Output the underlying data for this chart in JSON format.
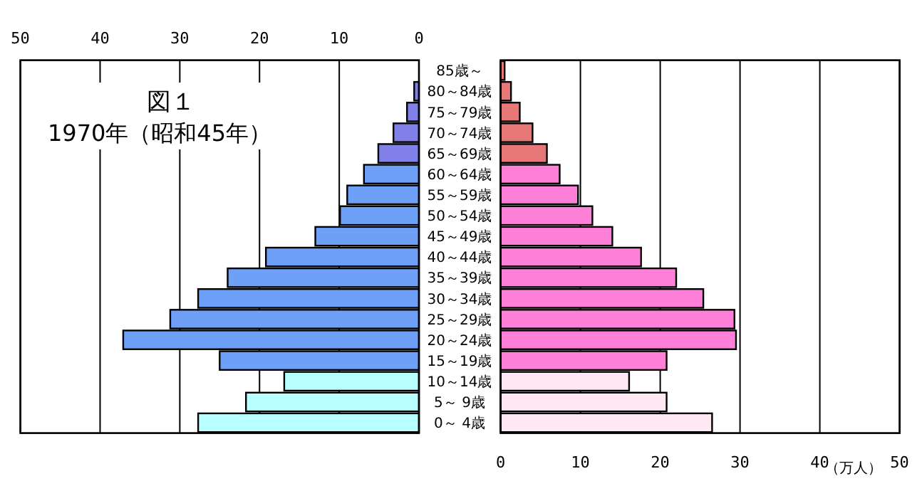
{
  "chart_data": [
    {
      "type": "bar",
      "orientation": "horizontal",
      "title": "図１",
      "subtitle": "1970年（昭和45年）",
      "categories": [
        "85歳～",
        "80～84歳",
        "75～79歳",
        "70～74歳",
        "65～69歳",
        "60～64歳",
        "55～59歳",
        "50～54歳",
        "45～49歳",
        "40～44歳",
        "35～39歳",
        "30～34歳",
        "25～29歳",
        "20～24歳",
        "15～19歳",
        "10～14歳",
        "5～ 9歳",
        "0～ 4歳"
      ],
      "x2lim": [
        50,
        0
      ],
      "x2ticks": [
        50,
        40,
        30,
        20,
        10,
        0
      ],
      "grid": "x",
      "series": [
        {
          "axis": "x2",
          "values": [
            null,
            0.6,
            1.5,
            3.2,
            5.1,
            6.9,
            9.0,
            9.9,
            13.0,
            19.2,
            24.0,
            27.7,
            31.2,
            37.1,
            25.0,
            16.9,
            21.7,
            27.7
          ],
          "colors": [
            null,
            "#8080e8",
            "#8080e8",
            "#8080e8",
            "#8080e8",
            "#6fa0f8",
            "#6fa0f8",
            "#6fa0f8",
            "#6fa0f8",
            "#6fa0f8",
            "#6fa0f8",
            "#6fa0f8",
            "#6fa0f8",
            "#6fa0f8",
            "#6fa0f8",
            "#b8ffff",
            "#b8ffff",
            "#b8ffff"
          ]
        }
      ]
    },
    {
      "type": "bar",
      "orientation": "horizontal",
      "xlabel": "（万人）",
      "categories": [
        null,
        null,
        null,
        null,
        null,
        null,
        null,
        null,
        null,
        null,
        null,
        null,
        null,
        null,
        null,
        null,
        null,
        null
      ],
      "tick_labels": "x",
      "xlim": [
        0,
        50
      ],
      "xticks": [
        0,
        10,
        20,
        30,
        40,
        50
      ],
      "grid": "x",
      "series": [
        {
          "values": [
            0.5,
            1.3,
            2.4,
            4.0,
            5.8,
            7.4,
            9.7,
            11.5,
            14.0,
            17.6,
            22.0,
            25.4,
            29.3,
            29.5,
            20.8,
            16.1,
            20.8,
            26.5
          ],
          "colors": [
            "#e87878",
            "#e87878",
            "#e87878",
            "#e87878",
            "#e87878",
            "#ff80d8",
            "#ff80d8",
            "#ff80d8",
            "#ff80d8",
            "#ff80d8",
            "#ff80d8",
            "#ff80d8",
            "#ff80d8",
            "#ff80d8",
            "#ff80d8",
            "#ffe8f4",
            "#ffe8f4",
            "#ffe8f4"
          ]
        }
      ]
    }
  ]
}
